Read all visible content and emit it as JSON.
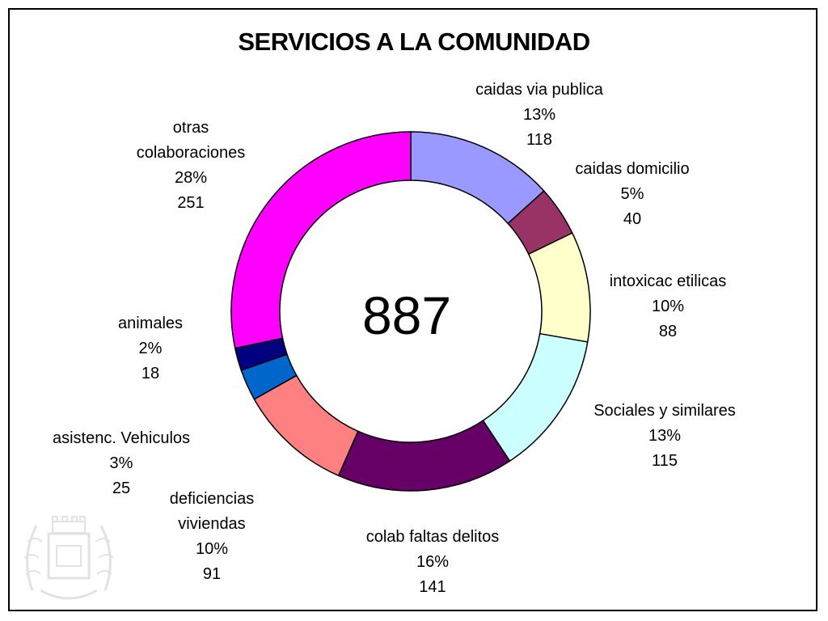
{
  "chart_data": {
    "type": "pie",
    "title": "SERVICIOS A LA COMUNIDAD",
    "total": "887",
    "slices": [
      {
        "label_lines": [
          "caidas via publica"
        ],
        "percent": "13%",
        "value": 118,
        "color": "#9999FF"
      },
      {
        "label_lines": [
          "caidas domicilio"
        ],
        "percent": "5%",
        "value": 40,
        "color": "#993366"
      },
      {
        "label_lines": [
          "intoxicac etilicas"
        ],
        "percent": "10%",
        "value": 88,
        "color": "#FFFFCC"
      },
      {
        "label_lines": [
          "Sociales y similares"
        ],
        "percent": "13%",
        "value": 115,
        "color": "#CCFFFF"
      },
      {
        "label_lines": [
          "colab faltas delitos"
        ],
        "percent": "16%",
        "value": 141,
        "color": "#660066"
      },
      {
        "label_lines": [
          "deficiencias",
          "viviendas"
        ],
        "percent": "10%",
        "value": 91,
        "color": "#FF8080"
      },
      {
        "label_lines": [
          "asistenc. Vehiculos"
        ],
        "percent": "3%",
        "value": 25,
        "color": "#0066CC"
      },
      {
        "label_lines": [
          "animales"
        ],
        "percent": "2%",
        "value": 18,
        "color": "#000080"
      },
      {
        "label_lines": [
          "otras",
          "colaboraciones"
        ],
        "percent": "28%",
        "value": 251,
        "color": "#FF00FF"
      }
    ],
    "legend": "none"
  },
  "watermark": "seal-emblem"
}
